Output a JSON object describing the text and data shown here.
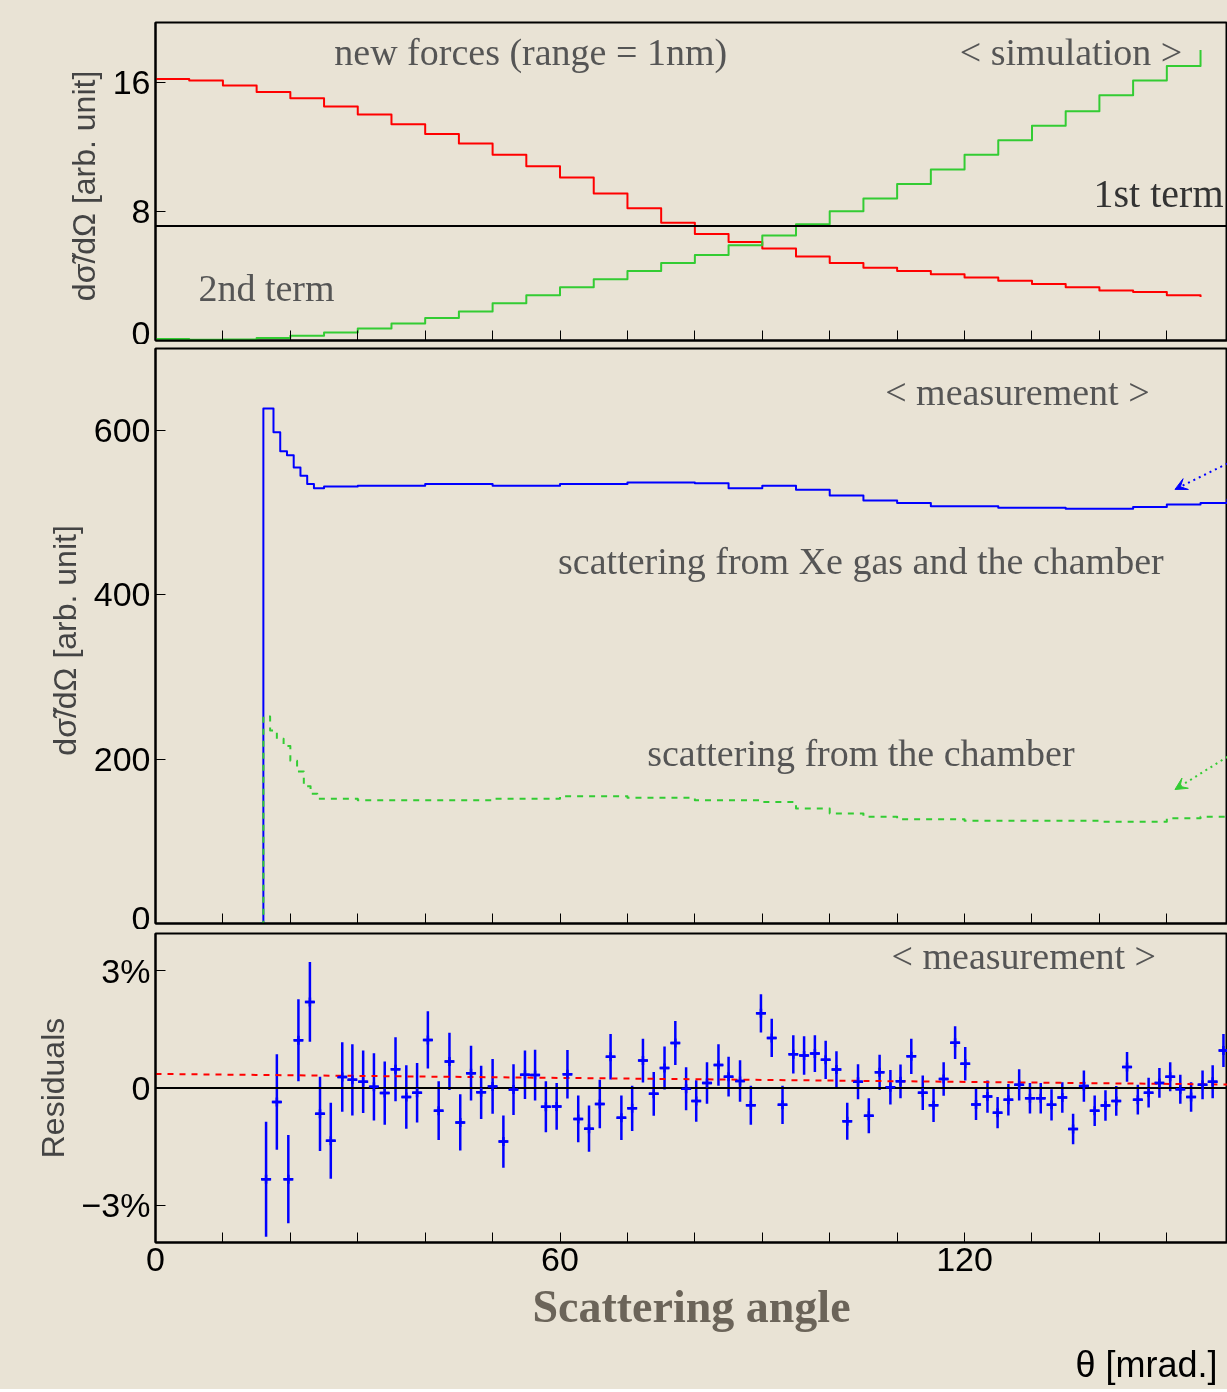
{
  "chart_data": [
    {
      "type": "step",
      "title": null,
      "ylabel": "dσ̃/dΩ  [arb. unit]",
      "tick_labels": "y",
      "xlim": [
        0,
        159
      ],
      "ylim": [
        0,
        19.7
      ],
      "xticks": [
        0,
        {
          "value": 10,
          "label": null
        },
        {
          "value": 20,
          "label": null
        },
        {
          "value": 30,
          "label": null
        },
        {
          "value": 40,
          "label": null
        },
        {
          "value": 50,
          "label": null
        },
        60,
        {
          "value": 70,
          "label": null
        },
        {
          "value": 80,
          "label": null
        },
        {
          "value": 90,
          "label": null
        },
        {
          "value": 100,
          "label": null
        },
        {
          "value": 110,
          "label": null
        },
        120,
        {
          "value": 130,
          "label": null
        },
        {
          "value": 140,
          "label": null
        },
        {
          "value": 150,
          "label": null
        }
      ],
      "yticks": [
        0,
        8,
        16
      ],
      "x": [
        0,
        5,
        10,
        15,
        20,
        25,
        30,
        35,
        40,
        45,
        50,
        55,
        60,
        65,
        70,
        75,
        80,
        85,
        90,
        95,
        100,
        105,
        110,
        115,
        120,
        125,
        130,
        135,
        140,
        145,
        150,
        155
      ],
      "series": [
        {
          "color": "#ff0000",
          "values": [
            16.2,
            16.1,
            15.8,
            15.4,
            15.0,
            14.5,
            14.0,
            13.4,
            12.8,
            12.2,
            11.5,
            10.8,
            10.1,
            9.1,
            8.2,
            7.3,
            6.6,
            6.1,
            5.7,
            5.2,
            4.8,
            4.5,
            4.3,
            4.1,
            3.9,
            3.7,
            3.5,
            3.3,
            3.1,
            3.0,
            2.8,
            2.7
          ]
        },
        {
          "color": "#33cc33",
          "values": [
            0.1,
            0.05,
            0.06,
            0.15,
            0.3,
            0.5,
            0.75,
            1.05,
            1.4,
            1.8,
            2.3,
            2.8,
            3.3,
            3.8,
            4.3,
            4.8,
            5.3,
            5.9,
            6.5,
            7.2,
            8.0,
            8.8,
            9.7,
            10.6,
            11.5,
            12.4,
            13.3,
            14.2,
            15.2,
            16.1,
            17.0,
            18.0
          ]
        }
      ],
      "ref_lines": [
        {
          "axis": "y",
          "value": 7.1,
          "label": "1st term",
          "color": "#000000"
        }
      ],
      "annotations": [
        "new forces (range = 1nm)",
        "< simulation >",
        "2nd term"
      ]
    },
    {
      "type": "step",
      "ylabel": "dσ̃/dΩ  [arb. unit]",
      "tick_labels": "y",
      "xlim": [
        0,
        159
      ],
      "ylim": [
        0,
        700
      ],
      "xticks": [
        0,
        {
          "value": 10,
          "label": null
        },
        {
          "value": 20,
          "label": null
        },
        {
          "value": 30,
          "label": null
        },
        {
          "value": 40,
          "label": null
        },
        {
          "value": 50,
          "label": null
        },
        60,
        {
          "value": 70,
          "label": null
        },
        {
          "value": 80,
          "label": null
        },
        {
          "value": 90,
          "label": null
        },
        {
          "value": 100,
          "label": null
        },
        {
          "value": 110,
          "label": null
        },
        120,
        {
          "value": 130,
          "label": null
        },
        {
          "value": 140,
          "label": null
        },
        {
          "value": 150,
          "label": null
        }
      ],
      "yticks": [
        0,
        200,
        400,
        600
      ],
      "series": [
        {
          "color": "#0000ff",
          "x": [
            15.5,
            16,
            17.5,
            18.5,
            19.5,
            20.5,
            21.5,
            22.5,
            23.5,
            25,
            30,
            40,
            50,
            60,
            70,
            80,
            85,
            90,
            95,
            100,
            105,
            110,
            115,
            120,
            125,
            130,
            135,
            140,
            145,
            150,
            155,
            159
          ],
          "values": [
            0,
            627,
            598,
            575,
            570,
            555,
            545,
            535,
            530,
            532,
            533,
            535,
            533,
            535,
            537,
            536,
            530,
            533,
            528,
            521,
            515,
            512,
            508,
            508,
            506,
            506,
            505,
            505,
            507,
            510,
            512,
            517
          ]
        },
        {
          "color": "#33cc33",
          "line_style": "dashed",
          "x": [
            15.5,
            16,
            17,
            18,
            19,
            20,
            21,
            22,
            23,
            24,
            30,
            40,
            50,
            60,
            70,
            80,
            90,
            95,
            100,
            105,
            110,
            120,
            130,
            140,
            150,
            155,
            159
          ],
          "values": [
            0,
            252,
            235,
            225,
            216,
            198,
            185,
            167,
            158,
            152,
            150,
            150,
            152,
            155,
            153,
            150,
            148,
            140,
            134,
            130,
            127,
            125,
            125,
            124,
            128,
            130,
            132
          ]
        }
      ],
      "annotations": [
        "< measurement >",
        "scattering from Xe gas and the chamber",
        "scattering from the chamber"
      ]
    },
    {
      "type": "scatter",
      "ylabel": "Residuals",
      "xlabel": "θ [mrad.]",
      "xlim": [
        0,
        159
      ],
      "ylim": [
        -3.95,
        3.95
      ],
      "xticks": [
        0,
        {
          "value": 10,
          "label": null
        },
        {
          "value": 20,
          "label": null
        },
        {
          "value": 30,
          "label": null
        },
        {
          "value": 40,
          "label": null
        },
        {
          "value": 50,
          "label": null
        },
        60,
        {
          "value": 70,
          "label": null
        },
        {
          "value": 80,
          "label": null
        },
        {
          "value": 90,
          "label": null
        },
        {
          "value": 100,
          "label": null
        },
        {
          "value": 110,
          "label": null
        },
        120,
        {
          "value": 130,
          "label": null
        },
        {
          "value": 140,
          "label": null
        },
        {
          "value": 150,
          "label": null
        }
      ],
      "yticks": [
        {
          "value": -3,
          "label": "−3%"
        },
        0,
        {
          "value": 3,
          "label": "3%"
        }
      ],
      "series": [
        {
          "color": "#0000ff",
          "marker": "cross",
          "x": [
            16.4,
            18.0,
            19.7,
            21.2,
            22.9,
            24.4,
            26.0,
            27.7,
            29.2,
            30.8,
            32.4,
            34.0,
            35.6,
            37.2,
            38.8,
            40.4,
            42.0,
            43.6,
            45.2,
            46.8,
            48.3,
            50.0,
            51.6,
            53.1,
            54.8,
            56.3,
            57.9,
            59.5,
            61.1,
            62.7,
            64.3,
            65.9,
            67.5,
            69.1,
            70.7,
            72.3,
            73.9,
            75.5,
            77.1,
            78.7,
            80.2,
            81.8,
            83.5,
            85.0,
            86.7,
            88.3,
            89.8,
            91.4,
            93.0,
            94.6,
            96.2,
            97.8,
            99.4,
            101.0,
            102.6,
            104.2,
            105.8,
            107.4,
            109.0,
            110.5,
            112.1,
            113.8,
            115.4,
            116.9,
            118.6,
            120.1,
            121.7,
            123.4,
            124.9,
            126.5,
            128.1,
            129.7,
            131.3,
            132.9,
            134.5,
            136.1,
            137.7,
            139.3,
            140.9,
            142.5,
            144.1,
            145.7,
            147.3,
            148.9,
            150.5,
            152.0,
            153.6,
            155.3,
            156.8,
            158.4
          ],
          "values": [
            -2.33,
            -0.36,
            -2.33,
            1.22,
            2.2,
            -0.66,
            -1.35,
            0.28,
            0.21,
            0.16,
            0.03,
            -0.13,
            0.48,
            -0.23,
            -0.12,
            1.23,
            -0.58,
            0.68,
            -0.88,
            0.38,
            -0.11,
            0.04,
            -1.37,
            -0.04,
            0.34,
            0.33,
            -0.48,
            -0.47,
            0.35,
            -0.79,
            -1.04,
            -0.41,
            0.8,
            -0.76,
            -0.52,
            0.7,
            -0.15,
            0.51,
            1.15,
            -0.02,
            -0.33,
            0.13,
            0.59,
            0.29,
            0.18,
            -0.44,
            1.91,
            1.28,
            -0.43,
            0.86,
            0.83,
            0.88,
            0.72,
            0.47,
            -0.85,
            0.16,
            -0.71,
            0.4,
            0.02,
            0.17,
            0.81,
            -0.12,
            -0.44,
            0.23,
            1.16,
            0.62,
            -0.42,
            -0.22,
            -0.63,
            -0.3,
            0.08,
            -0.26,
            -0.26,
            -0.43,
            -0.24,
            -1.05,
            0.05,
            -0.58,
            -0.45,
            -0.33,
            0.54,
            -0.3,
            -0.12,
            0.13,
            0.29,
            -0.03,
            -0.23,
            0.08,
            0.16,
            0.96
          ],
          "errors": [
            1.47,
            1.22,
            1.13,
            1.05,
            1.02,
            0.95,
            0.97,
            0.89,
            0.91,
            0.8,
            0.86,
            0.81,
            0.82,
            0.81,
            0.76,
            0.73,
            0.75,
            0.73,
            0.72,
            0.7,
            0.68,
            0.7,
            0.67,
            0.65,
            0.62,
            0.65,
            0.65,
            0.6,
            0.62,
            0.6,
            0.59,
            0.62,
            0.58,
            0.57,
            0.58,
            0.56,
            0.56,
            0.55,
            0.56,
            0.55,
            0.53,
            0.53,
            0.53,
            0.51,
            0.53,
            0.5,
            0.49,
            0.49,
            0.49,
            0.49,
            0.49,
            0.47,
            0.49,
            0.47,
            0.47,
            0.45,
            0.45,
            0.45,
            0.44,
            0.43,
            0.45,
            0.44,
            0.43,
            0.43,
            0.42,
            0.43,
            0.4,
            0.41,
            0.4,
            0.4,
            0.4,
            0.39,
            0.39,
            0.4,
            0.39,
            0.39,
            0.4,
            0.39,
            0.39,
            0.38,
            0.38,
            0.38,
            0.38,
            0.38,
            0.37,
            0.37,
            0.38,
            0.37,
            0.42,
            0.42
          ],
          "xerrors": [
            0.75,
            0.75,
            0.75,
            0.75,
            0.75,
            0.75,
            0.75,
            0.75,
            0.75,
            0.75,
            0.75,
            0.75,
            0.75,
            0.75,
            0.75,
            0.75,
            0.75,
            0.75,
            0.75,
            0.75,
            0.75,
            0.75,
            0.75,
            0.75,
            0.75,
            0.75,
            0.75,
            0.75,
            0.75,
            0.75,
            0.75,
            0.75,
            0.75,
            0.75,
            0.75,
            0.75,
            0.75,
            0.75,
            0.75,
            0.75,
            0.75,
            0.75,
            0.75,
            0.75,
            0.75,
            0.75,
            0.75,
            0.75,
            0.75,
            0.75,
            0.75,
            0.75,
            0.75,
            0.75,
            0.75,
            0.75,
            0.75,
            0.75,
            0.75,
            0.75,
            0.75,
            0.75,
            0.75,
            0.75,
            0.75,
            0.75,
            0.75,
            0.75,
            0.75,
            0.75,
            0.75,
            0.75,
            0.75,
            0.75,
            0.75,
            0.75,
            0.75,
            0.75,
            0.75,
            0.75,
            0.75,
            0.75,
            0.75,
            0.75,
            0.75,
            0.75,
            0.75,
            0.75,
            0.75,
            0.75
          ]
        },
        {
          "type": "line",
          "color": "#ff0000",
          "line_style": "dashed",
          "x": [
            0,
            159
          ],
          "values": [
            0.36,
            0.09
          ]
        }
      ],
      "ref_lines": [
        {
          "axis": "y",
          "value": 0,
          "color": "#000000"
        }
      ],
      "annotations": [
        "< measurement >",
        "Scattering angle"
      ]
    }
  ]
}
